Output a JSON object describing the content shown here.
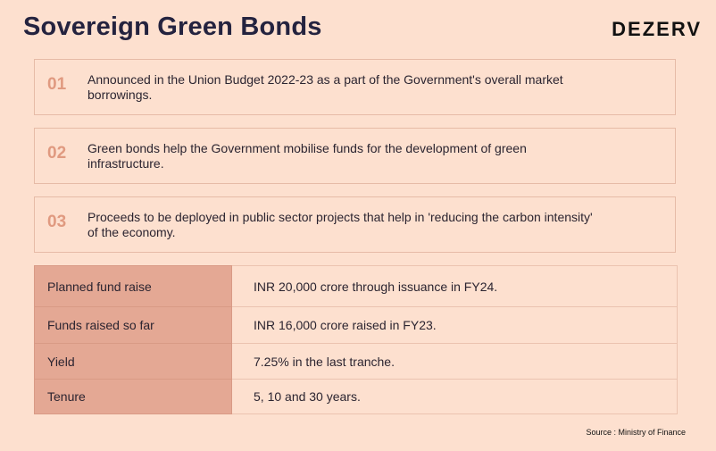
{
  "header": {
    "title": "Sovereign Green Bonds",
    "brand": "DEZERV"
  },
  "points": [
    {
      "number": "01",
      "text": "Announced in the Union Budget 2022-23 as a part of the Government's overall market borrowings."
    },
    {
      "number": "02",
      "text": "Green bonds help the Government mobilise funds for the development of green infrastructure."
    },
    {
      "number": "03",
      "text": "Proceeds to be deployed in public sector projects that help in 'reducing the carbon intensity' of the economy."
    }
  ],
  "table": [
    {
      "label": "Planned fund raise",
      "value": "INR 20,000 crore through issuance in FY24."
    },
    {
      "label": "Funds raised so far",
      "value": "INR 16,000 crore raised in FY23."
    },
    {
      "label": "Yield",
      "value": "7.25% in the last tranche."
    },
    {
      "label": "Tenure",
      "value": "5, 10 and 30 years."
    }
  ],
  "footer": {
    "source": "Source : Ministry of Finance"
  }
}
